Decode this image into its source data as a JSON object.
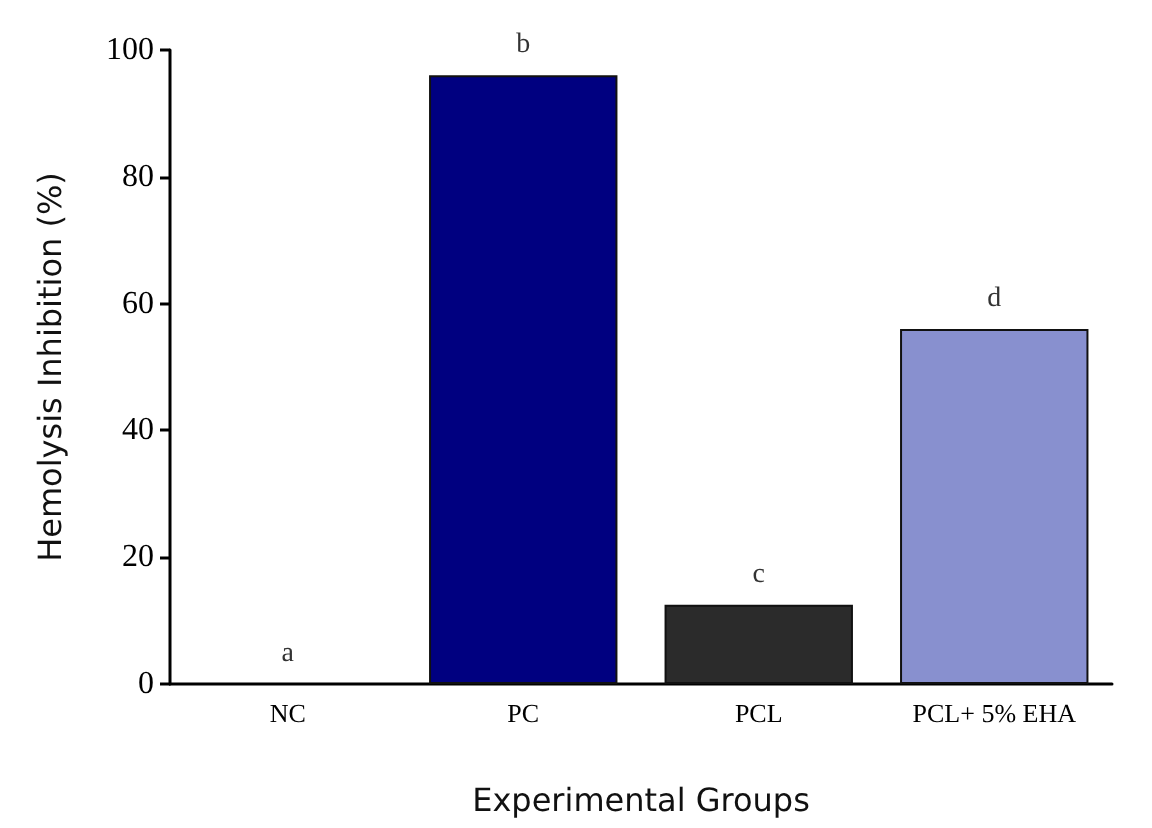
{
  "chart_data": {
    "type": "bar",
    "xlabel": "Experimental Groups",
    "ylabel": "Hemolysis Inhibition (%)",
    "categories": [
      "NC",
      "PC",
      "PCL",
      "PCL+ 5% EHA"
    ],
    "values": [
      0,
      96,
      12.5,
      56
    ],
    "colors": [
      null,
      "#000080",
      "#2b2b2b",
      "#8890cf"
    ],
    "ylim": [
      0,
      100
    ],
    "yticks": [
      0,
      20,
      40,
      60,
      80,
      100
    ],
    "grid": false,
    "annotations": [
      {
        "text": "a",
        "x": "NC",
        "y": 0
      },
      {
        "text": "b",
        "x": "PC",
        "y": 96
      },
      {
        "text": "c",
        "x": "PCL",
        "y": 12.5
      },
      {
        "text": "d",
        "x": "PCL+ 5% EHA",
        "y": 56
      }
    ]
  }
}
